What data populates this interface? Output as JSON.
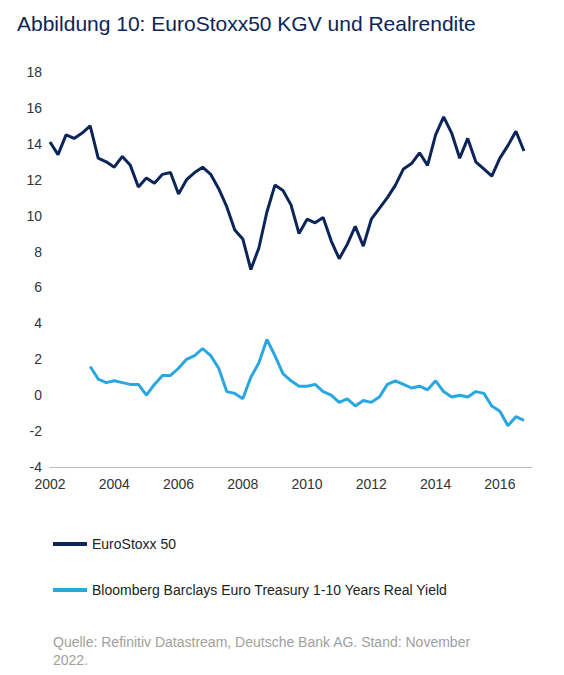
{
  "chart_data": {
    "type": "line",
    "title": "Abbildung 10: EuroStoxx50 KGV und Realrendite",
    "source": "Quelle: Refinitiv Datastream, Deutsche Bank AG. Stand: November 2022.",
    "x": [
      2002,
      2002.25,
      2002.5,
      2002.75,
      2003,
      2003.25,
      2003.5,
      2003.75,
      2004,
      2004.25,
      2004.5,
      2004.75,
      2005,
      2005.25,
      2005.5,
      2005.75,
      2006,
      2006.25,
      2006.5,
      2006.75,
      2007,
      2007.25,
      2007.5,
      2007.75,
      2008,
      2008.25,
      2008.5,
      2008.75,
      2009,
      2009.25,
      2009.5,
      2009.75,
      2010,
      2010.25,
      2010.5,
      2010.75,
      2011,
      2011.25,
      2011.5,
      2011.75,
      2012,
      2012.25,
      2012.5,
      2012.75,
      2013,
      2013.25,
      2013.5,
      2013.75,
      2014,
      2014.25,
      2014.5,
      2014.75,
      2015,
      2015.25,
      2015.5,
      2015.75,
      2016,
      2016.25,
      2016.5,
      2016.75
    ],
    "series": [
      {
        "name": "EuroStoxx 50",
        "color": "#0b2559",
        "values": [
          14.1,
          13.4,
          14.5,
          14.3,
          14.6,
          15.0,
          13.2,
          13.0,
          12.7,
          13.3,
          12.8,
          11.6,
          12.1,
          11.8,
          12.3,
          12.4,
          11.2,
          12.0,
          12.4,
          12.7,
          12.3,
          11.5,
          10.5,
          9.2,
          8.7,
          7.0,
          8.2,
          10.2,
          11.7,
          11.4,
          10.6,
          9.0,
          9.8,
          9.6,
          9.9,
          8.6,
          7.6,
          8.4,
          9.4,
          8.3,
          9.8,
          10.4,
          11.0,
          11.7,
          12.6,
          12.9,
          13.5,
          12.8,
          14.5,
          15.5,
          14.6,
          13.2,
          14.3,
          13.0,
          12.6,
          12.2,
          13.2,
          13.9,
          14.7,
          13.6
        ]
      },
      {
        "name": "Bloomberg Barclays Euro Treasury 1-10 Years Real Yield",
        "color": "#2aa7e0",
        "values": [
          null,
          null,
          null,
          null,
          null,
          1.6,
          0.9,
          0.7,
          0.8,
          0.7,
          0.6,
          0.6,
          0.0,
          0.6,
          1.1,
          1.1,
          1.5,
          2.0,
          2.2,
          2.6,
          2.2,
          1.5,
          0.2,
          0.1,
          -0.2,
          1.0,
          1.8,
          3.1,
          2.2,
          1.2,
          0.8,
          0.5,
          0.5,
          0.6,
          0.2,
          0.0,
          -0.4,
          -0.2,
          -0.6,
          -0.3,
          -0.4,
          -0.1,
          0.6,
          0.8,
          0.6,
          0.4,
          0.5,
          0.3,
          0.8,
          0.2,
          -0.1,
          0.0,
          -0.1,
          0.2,
          0.1,
          -0.6,
          -0.9,
          -1.7,
          -1.2,
          -1.4
        ]
      }
    ],
    "xlim": [
      2002,
      2017
    ],
    "xticks": [
      2002,
      2004,
      2006,
      2008,
      2010,
      2012,
      2014,
      2016
    ],
    "ylim": [
      -4,
      18
    ],
    "yticks": [
      -4,
      -2,
      0,
      2,
      4,
      6,
      8,
      10,
      12,
      14,
      16,
      18
    ],
    "grid": false,
    "legend": "bottom-left"
  }
}
